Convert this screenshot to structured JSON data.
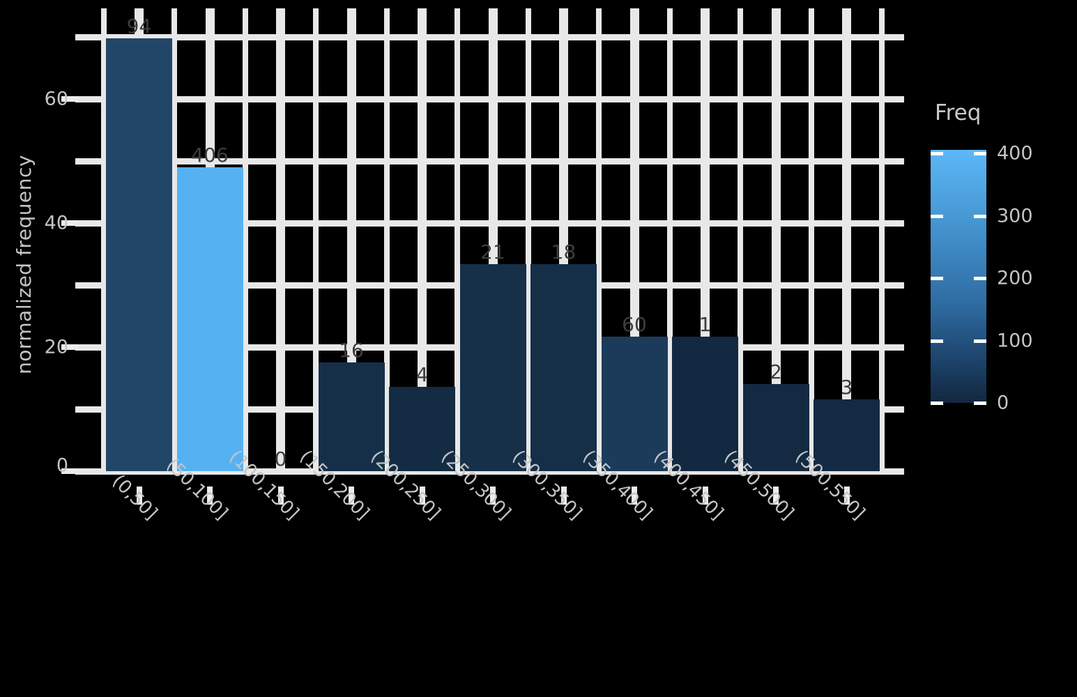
{
  "colors": {
    "background": "#000000",
    "gridline": "#e8e8e8",
    "axis_text": "#c4c4c4",
    "bar_label_text": "#3d3d3d",
    "legend_gradient_top": "#5cb8f7",
    "legend_gradient_bottom": "#122740"
  },
  "y_axis": {
    "title": "normalized frequency",
    "tick_labels": [
      "0",
      "20",
      "40",
      "60"
    ]
  },
  "legend": {
    "title": "Freq",
    "tick_labels": [
      "400",
      "300",
      "200",
      "100",
      "0"
    ]
  },
  "chart_data": {
    "type": "bar",
    "title": "",
    "xlabel": "",
    "ylabel": "normalized frequency",
    "y_ticks": [
      0,
      20,
      40,
      60
    ],
    "ylim": [
      0,
      74
    ],
    "grid": "major-and-minor, thick white lattice on dark background",
    "legend_position": "right",
    "fill_variable": "Freq",
    "fill_range": [
      0,
      400
    ],
    "categories": [
      "(0,50]",
      "(50,100]",
      "(100,150]",
      "(150,200]",
      "(200,250]",
      "(250,300]",
      "(300,350]",
      "(350,400]",
      "(400,450]",
      "(450,500]",
      "(500,550]"
    ],
    "bars": [
      {
        "category": "(0,50]",
        "y_value": 69.8,
        "freq_label": "94",
        "color": "#224667"
      },
      {
        "category": "(50,100]",
        "y_value": 49.0,
        "freq_label": "406",
        "color": "#56b1f3"
      },
      {
        "category": "(100,150]",
        "y_value": 0,
        "freq_label": "0",
        "color": "#122740"
      },
      {
        "category": "(150,200]",
        "y_value": 17.5,
        "freq_label": "16",
        "color": "#152f48"
      },
      {
        "category": "(200,250]",
        "y_value": 13.6,
        "freq_label": "4",
        "color": "#132b43"
      },
      {
        "category": "(250,300]",
        "y_value": 33.4,
        "freq_label": "21",
        "color": "#163049"
      },
      {
        "category": "(300,350]",
        "y_value": 33.4,
        "freq_label": "18",
        "color": "#152f49"
      },
      {
        "category": "(350,400]",
        "y_value": 21.7,
        "freq_label": "60",
        "color": "#1c3b5a"
      },
      {
        "category": "(400,450]",
        "y_value": 21.7,
        "freq_label": "1",
        "color": "#122941"
      },
      {
        "category": "(450,500]",
        "y_value": 14.0,
        "freq_label": "2",
        "color": "#132a42"
      },
      {
        "category": "(500,550]",
        "y_value": 11.6,
        "freq_label": "3",
        "color": "#132a42"
      }
    ]
  }
}
